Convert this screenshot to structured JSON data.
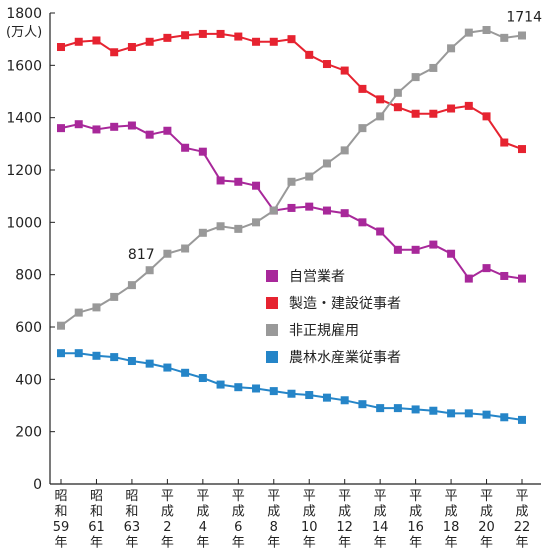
{
  "chart_data": {
    "type": "line",
    "unit_label": "(万人)",
    "ylim": [
      0,
      1800
    ],
    "yticks": [
      "0",
      "200",
      "400",
      "600",
      "800",
      "1000",
      "1200",
      "1400",
      "1600",
      "1800"
    ],
    "x_labels": [
      [
        "昭",
        "和",
        "59",
        "年"
      ],
      [
        "昭",
        "和",
        "61",
        "年"
      ],
      [
        "昭",
        "和",
        "63",
        "年"
      ],
      [
        "平",
        "成",
        "2",
        "年"
      ],
      [
        "平",
        "成",
        "4",
        "年"
      ],
      [
        "平",
        "成",
        "6",
        "年"
      ],
      [
        "平",
        "成",
        "8",
        "年"
      ],
      [
        "平",
        "成",
        "10",
        "年"
      ],
      [
        "平",
        "成",
        "12",
        "年"
      ],
      [
        "平",
        "成",
        "14",
        "年"
      ],
      [
        "平",
        "成",
        "16",
        "年"
      ],
      [
        "平",
        "成",
        "18",
        "年"
      ],
      [
        "平",
        "成",
        "20",
        "年"
      ],
      [
        "平",
        "成",
        "22",
        "年"
      ]
    ],
    "n_points": 27,
    "series": [
      {
        "name": "自営業者",
        "color": "#a8289a",
        "values": [
          1360,
          1375,
          1355,
          1365,
          1370,
          1335,
          1350,
          1285,
          1270,
          1160,
          1155,
          1140,
          1045,
          1055,
          1060,
          1045,
          1035,
          1000,
          965,
          895,
          895,
          915,
          880,
          785,
          825,
          795,
          785
        ]
      },
      {
        "name": "製造・建設従事者",
        "color": "#e62330",
        "values": [
          1670,
          1690,
          1695,
          1650,
          1670,
          1690,
          1705,
          1715,
          1720,
          1720,
          1710,
          1690,
          1690,
          1700,
          1640,
          1605,
          1580,
          1510,
          1470,
          1440,
          1415,
          1415,
          1435,
          1445,
          1405,
          1305,
          1280
        ]
      },
      {
        "name": "非正規雇用",
        "color": "#999999",
        "values": [
          605,
          655,
          675,
          715,
          760,
          817,
          880,
          900,
          960,
          985,
          975,
          1000,
          1045,
          1155,
          1175,
          1225,
          1275,
          1360,
          1405,
          1495,
          1555,
          1590,
          1665,
          1725,
          1735,
          1705,
          1714
        ]
      },
      {
        "name": "農林水産業従事者",
        "color": "#2585c8",
        "values": [
          500,
          500,
          490,
          485,
          470,
          460,
          445,
          425,
          405,
          380,
          370,
          365,
          355,
          345,
          340,
          330,
          320,
          305,
          290,
          290,
          285,
          280,
          270,
          270,
          265,
          255,
          245
        ]
      }
    ],
    "annotations": [
      {
        "series_index": 2,
        "point_index": 5,
        "text": "817"
      },
      {
        "series_index": 2,
        "point_index": 26,
        "text": "1714"
      }
    ],
    "legend_position": "center-right"
  }
}
